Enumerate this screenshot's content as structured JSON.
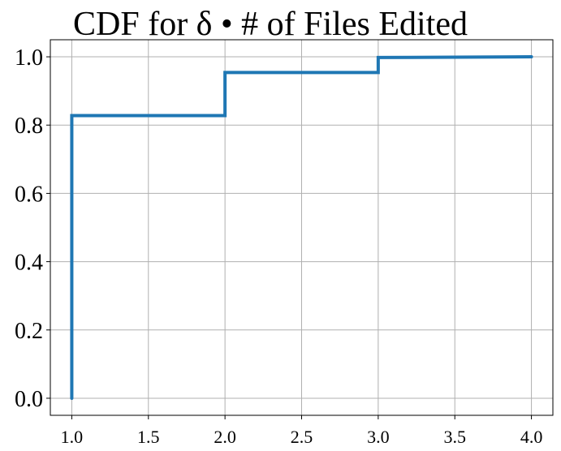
{
  "chart_data": {
    "type": "line",
    "title": "CDF for δ • # of Files Edited",
    "xlabel": "",
    "ylabel": "",
    "xlim": [
      0.86,
      4.14
    ],
    "ylim": [
      -0.05,
      1.05
    ],
    "x_ticks": [
      1.0,
      1.5,
      2.0,
      2.5,
      3.0,
      3.5,
      4.0
    ],
    "x_tick_labels": [
      "1.0",
      "1.5",
      "2.0",
      "2.5",
      "3.0",
      "3.5",
      "4.0"
    ],
    "y_ticks": [
      0.0,
      0.2,
      0.4,
      0.6,
      0.8,
      1.0
    ],
    "y_tick_labels": [
      "0.0",
      "0.2",
      "0.4",
      "0.6",
      "0.8",
      "1.0"
    ],
    "grid": true,
    "step": "post",
    "series": [
      {
        "x": [
          1,
          1,
          2,
          2,
          3,
          3,
          4
        ],
        "y": [
          0.0,
          0.828,
          0.828,
          0.954,
          0.954,
          0.998,
          1.0
        ],
        "color": "#1f77b4"
      }
    ]
  }
}
